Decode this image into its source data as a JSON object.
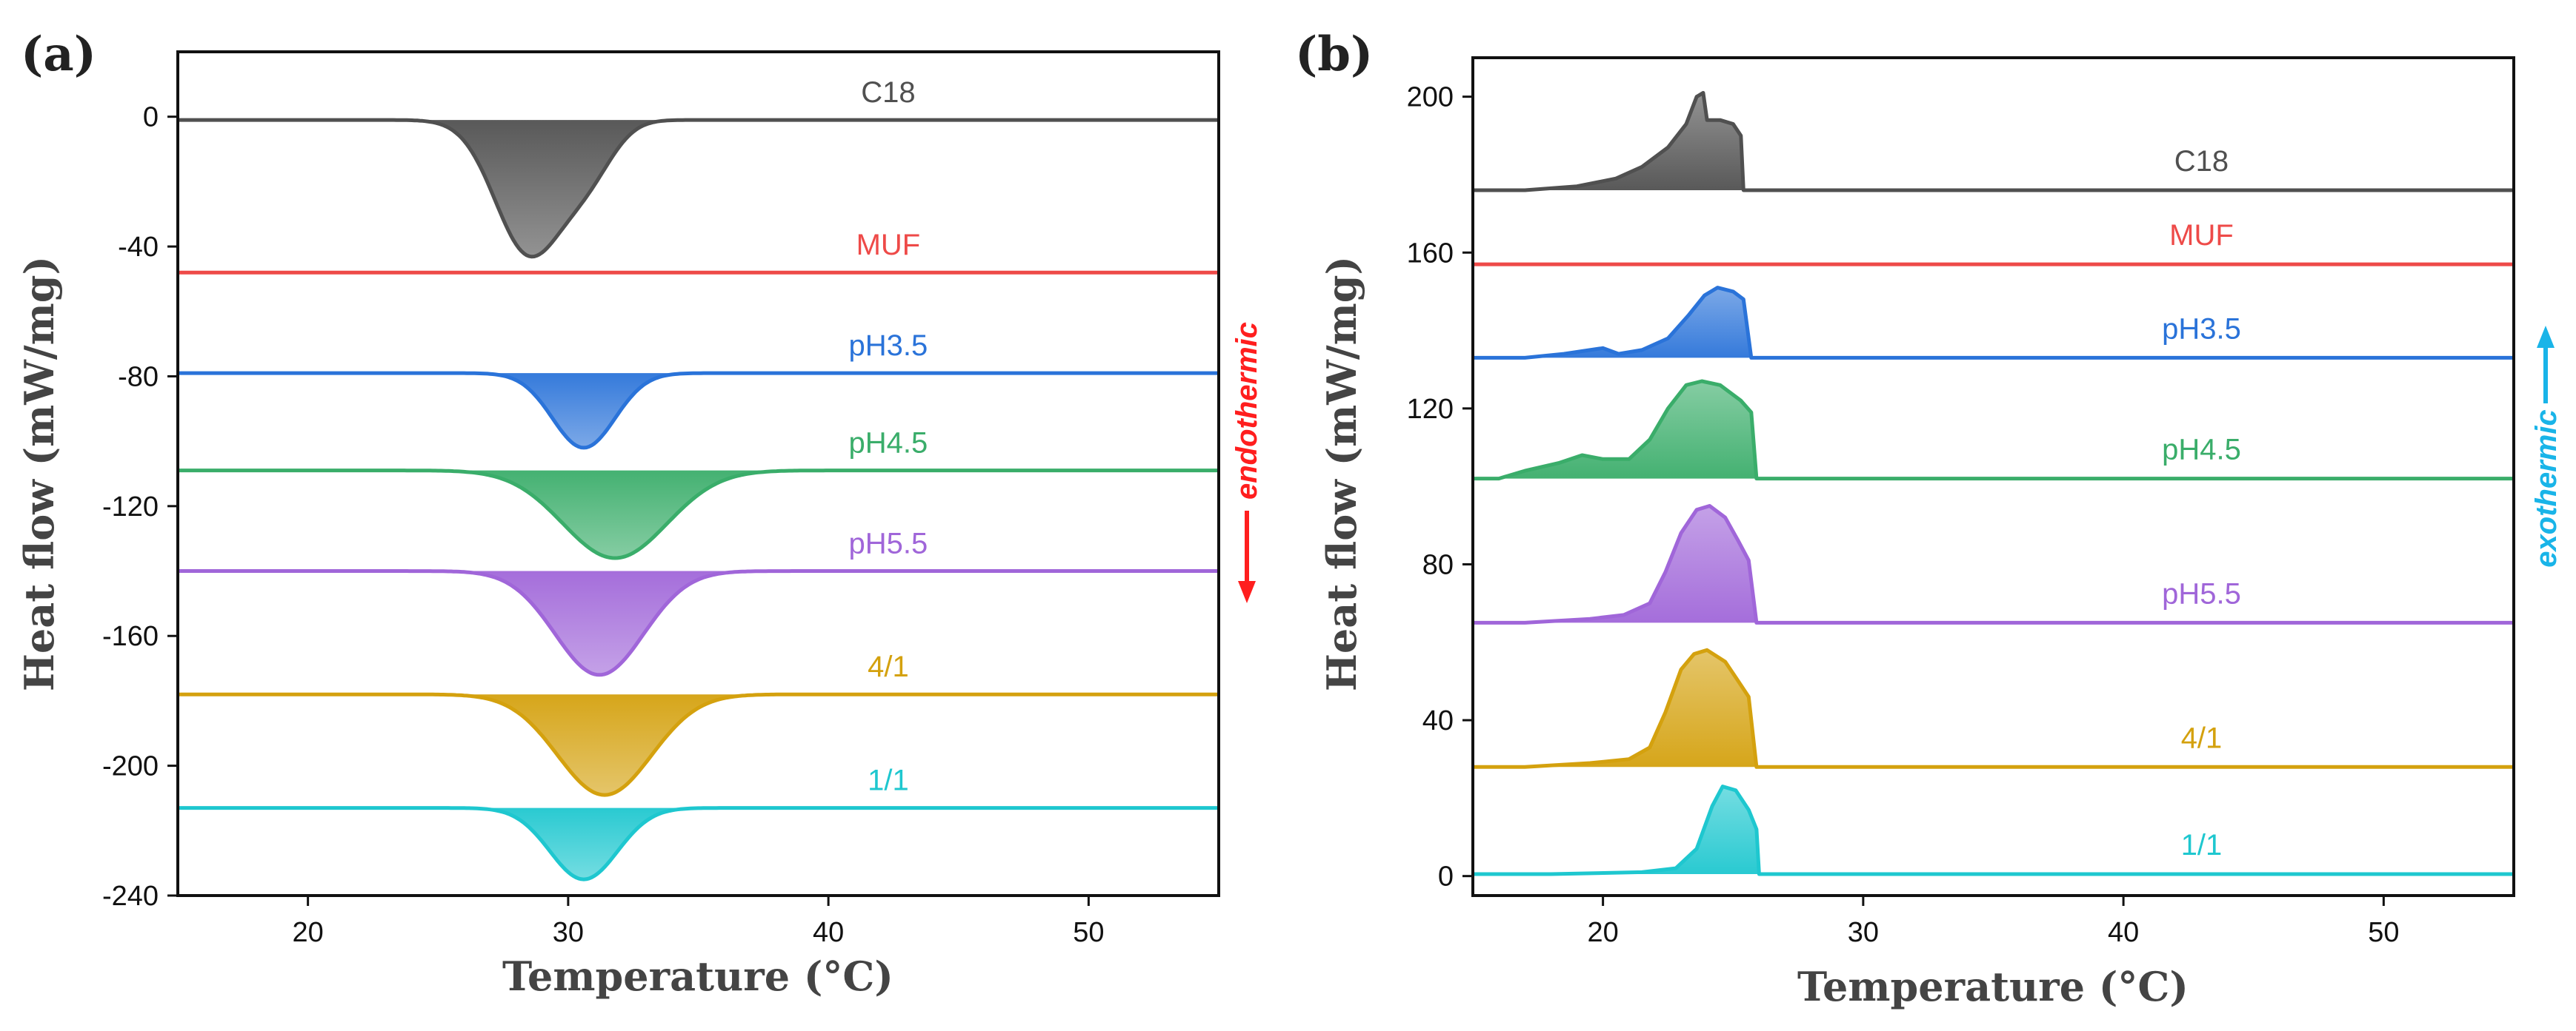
{
  "chart_data": [
    {
      "panel": "(a)",
      "type": "line",
      "xlabel": "Temperature (°C)",
      "ylabel": "Heat flow (mW/mg)",
      "xlim": [
        15,
        55
      ],
      "ylim": [
        -240,
        20
      ],
      "xticks": [
        20,
        30,
        40,
        50
      ],
      "yticks": [
        0,
        -40,
        -80,
        -120,
        -160,
        -200,
        -240
      ],
      "annotation": {
        "text": "endothermic",
        "direction": "down",
        "color": "#ff1e1e"
      },
      "series": [
        {
          "name": "C18",
          "color": "#505050",
          "baseline": -1,
          "peaks": [
            {
              "x": 28.5,
              "w": 1.3,
              "a": -41
            },
            {
              "x": 30.8,
              "w": 1.0,
              "a": -14
            }
          ]
        },
        {
          "name": "MUF",
          "color": "#ee4a48",
          "baseline": -48,
          "peaks": []
        },
        {
          "name": "pH3.5",
          "color": "#2a73d9",
          "baseline": -79,
          "peaks": [
            {
              "x": 30.6,
              "w": 1.2,
              "a": -23
            }
          ]
        },
        {
          "name": "pH4.5",
          "color": "#3aad6a",
          "baseline": -109,
          "peaks": [
            {
              "x": 31.8,
              "w": 2.0,
              "a": -27
            }
          ]
        },
        {
          "name": "pH5.5",
          "color": "#a066d9",
          "baseline": -140,
          "peaks": [
            {
              "x": 31.2,
              "w": 1.7,
              "a": -32
            }
          ]
        },
        {
          "name": "4/1",
          "color": "#d4a10e",
          "baseline": -178,
          "peaks": [
            {
              "x": 31.4,
              "w": 1.8,
              "a": -31
            }
          ]
        },
        {
          "name": "1/1",
          "color": "#1ec7cf",
          "baseline": -213,
          "peaks": [
            {
              "x": 30.6,
              "w": 1.3,
              "a": -22
            }
          ]
        }
      ]
    },
    {
      "panel": "(b)",
      "type": "line",
      "xlabel": "Temperature (°C)",
      "ylabel": "Heat flow (mW/mg)",
      "xlim": [
        15,
        55
      ],
      "ylim": [
        -5,
        210
      ],
      "xticks": [
        20,
        30,
        40,
        50
      ],
      "yticks": [
        0,
        40,
        80,
        120,
        160,
        200
      ],
      "annotation": {
        "text": "exothermic",
        "direction": "up",
        "color": "#19b4e8"
      },
      "series": [
        {
          "name": "C18",
          "color": "#505050",
          "baseline": 176,
          "onset": 17.0,
          "end": 25.4,
          "points": [
            [
              17.0,
              176
            ],
            [
              19.0,
              177
            ],
            [
              20.5,
              179
            ],
            [
              21.5,
              182
            ],
            [
              22.5,
              187
            ],
            [
              23.2,
              193
            ],
            [
              23.6,
              200
            ],
            [
              23.85,
              201
            ],
            [
              24.0,
              194
            ],
            [
              24.5,
              194
            ],
            [
              25.0,
              193
            ],
            [
              25.3,
              190
            ],
            [
              25.4,
              176
            ]
          ]
        },
        {
          "name": "MUF",
          "color": "#ee4a48",
          "baseline": 157,
          "onset": null,
          "end": null,
          "points": []
        },
        {
          "name": "pH3.5",
          "color": "#2a73d9",
          "baseline": 133,
          "onset": 17.0,
          "end": 25.7,
          "points": [
            [
              17.0,
              133
            ],
            [
              18.5,
              134
            ],
            [
              19.5,
              135
            ],
            [
              20.0,
              135.5
            ],
            [
              20.6,
              134
            ],
            [
              21.5,
              135
            ],
            [
              22.5,
              138
            ],
            [
              23.3,
              144
            ],
            [
              23.9,
              149
            ],
            [
              24.4,
              151
            ],
            [
              25.0,
              150
            ],
            [
              25.4,
              148
            ],
            [
              25.7,
              133
            ]
          ]
        },
        {
          "name": "pH4.5",
          "color": "#3aad6a",
          "baseline": 102,
          "onset": 16.0,
          "end": 25.9,
          "points": [
            [
              16.0,
              102
            ],
            [
              17.0,
              104
            ],
            [
              18.3,
              106
            ],
            [
              19.2,
              108
            ],
            [
              20.0,
              107
            ],
            [
              21.0,
              107
            ],
            [
              21.8,
              112
            ],
            [
              22.5,
              120
            ],
            [
              23.2,
              126
            ],
            [
              23.8,
              127
            ],
            [
              24.5,
              126
            ],
            [
              25.3,
              122
            ],
            [
              25.7,
              119
            ],
            [
              25.9,
              102
            ]
          ]
        },
        {
          "name": "pH5.5",
          "color": "#a066d9",
          "baseline": 65,
          "onset": 17.0,
          "end": 25.9,
          "points": [
            [
              17.0,
              65
            ],
            [
              19.5,
              66
            ],
            [
              20.8,
              67
            ],
            [
              21.8,
              70
            ],
            [
              22.4,
              78
            ],
            [
              23.0,
              88
            ],
            [
              23.6,
              94
            ],
            [
              24.1,
              95
            ],
            [
              24.7,
              92
            ],
            [
              25.2,
              86
            ],
            [
              25.6,
              81
            ],
            [
              25.9,
              65
            ]
          ]
        },
        {
          "name": "4/1",
          "color": "#d4a10e",
          "baseline": 28,
          "onset": 17.0,
          "end": 25.9,
          "points": [
            [
              17.0,
              28
            ],
            [
              19.5,
              29
            ],
            [
              21.0,
              30
            ],
            [
              21.8,
              33
            ],
            [
              22.4,
              42
            ],
            [
              23.0,
              53
            ],
            [
              23.5,
              57
            ],
            [
              24.0,
              58
            ],
            [
              24.7,
              55
            ],
            [
              25.2,
              50
            ],
            [
              25.6,
              46
            ],
            [
              25.9,
              28
            ]
          ]
        },
        {
          "name": "1/1",
          "color": "#1ec7cf",
          "baseline": 0.5,
          "onset": 18.0,
          "end": 26.0,
          "points": [
            [
              18.0,
              0.5
            ],
            [
              21.5,
              1
            ],
            [
              22.8,
              2
            ],
            [
              23.6,
              7
            ],
            [
              24.2,
              18
            ],
            [
              24.6,
              23
            ],
            [
              25.1,
              22
            ],
            [
              25.6,
              17
            ],
            [
              25.9,
              12
            ],
            [
              26.0,
              0.5
            ]
          ]
        }
      ]
    }
  ]
}
